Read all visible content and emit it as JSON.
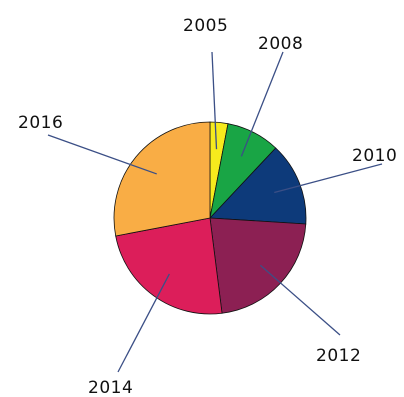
{
  "chart_data": {
    "type": "pie",
    "categories": [
      "2005",
      "2008",
      "2010",
      "2012",
      "2014",
      "2016"
    ],
    "values": [
      3,
      9,
      14,
      22,
      24,
      28
    ],
    "colors": [
      "#f6ea1d",
      "#19a545",
      "#0d3a7a",
      "#8c2053",
      "#dc1e5a",
      "#f9ad45"
    ],
    "title": "",
    "xlabel": "",
    "ylabel": "",
    "legend": "none",
    "grid": false
  }
}
